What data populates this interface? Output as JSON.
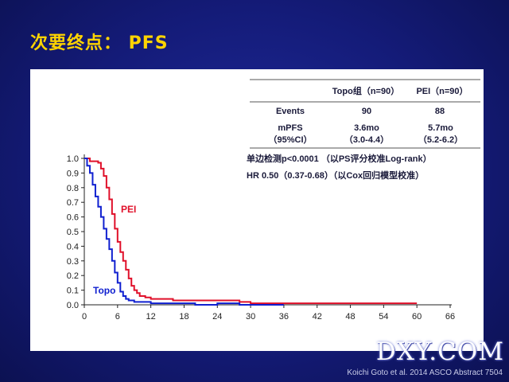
{
  "slide": {
    "title": "次要终点： PFS",
    "watermark": "DXY.COM",
    "citation": "Koichi Goto et al. 2014 ASCO Abstract 7504"
  },
  "table": {
    "headers": [
      "",
      "Topo组（n=90）",
      "PEI（n=90）"
    ],
    "events": {
      "label": "Events",
      "topo": "90",
      "pei": "88"
    },
    "mpfs": {
      "label_line1": "mPFS",
      "label_line2": "（95%CI）",
      "topo_line1": "3.6mo",
      "topo_line2": "（3.0-4.4）",
      "pei_line1": "5.7mo",
      "pei_line2": "（5.2-6.2）"
    },
    "note1": "单边检测p<0.0001 （以PS评分校准Log-rank）",
    "note2": "HR 0.50（0.37-0.68）（以Cox回归模型校准）"
  },
  "chart_data": {
    "type": "line",
    "xlabel": "",
    "ylabel": "",
    "xlim": [
      0,
      66
    ],
    "ylim": [
      0,
      1.0
    ],
    "x_ticks": [
      "0",
      "6",
      "12",
      "18",
      "24",
      "30",
      "36",
      "42",
      "48",
      "54",
      "60",
      "66"
    ],
    "y_ticks": [
      "0.0",
      "0.1",
      "0.2",
      "0.3",
      "0.4",
      "0.5",
      "0.6",
      "0.7",
      "0.8",
      "0.9",
      "1.0"
    ],
    "series": [
      {
        "name": "PEI",
        "color": "#e0102a",
        "points": [
          [
            0,
            1.0
          ],
          [
            1,
            0.98
          ],
          [
            2.5,
            0.97
          ],
          [
            3,
            0.93
          ],
          [
            3.5,
            0.88
          ],
          [
            4,
            0.8
          ],
          [
            4.5,
            0.72
          ],
          [
            5,
            0.62
          ],
          [
            5.5,
            0.52
          ],
          [
            6,
            0.43
          ],
          [
            6.5,
            0.36
          ],
          [
            7,
            0.3
          ],
          [
            7.5,
            0.24
          ],
          [
            8,
            0.18
          ],
          [
            8.5,
            0.13
          ],
          [
            9,
            0.1
          ],
          [
            9.5,
            0.08
          ],
          [
            10,
            0.06
          ],
          [
            11,
            0.05
          ],
          [
            12,
            0.04
          ],
          [
            14,
            0.04
          ],
          [
            16,
            0.03
          ],
          [
            20,
            0.03
          ],
          [
            25,
            0.03
          ],
          [
            28,
            0.02
          ],
          [
            30,
            0.01
          ],
          [
            36,
            0.01
          ],
          [
            40,
            0.01
          ],
          [
            50,
            0.01
          ],
          [
            60,
            0.01
          ]
        ]
      },
      {
        "name": "Topo",
        "color": "#1020d0",
        "points": [
          [
            0,
            1.0
          ],
          [
            0.5,
            0.95
          ],
          [
            1,
            0.9
          ],
          [
            1.5,
            0.82
          ],
          [
            2,
            0.74
          ],
          [
            2.5,
            0.67
          ],
          [
            3,
            0.6
          ],
          [
            3.5,
            0.52
          ],
          [
            4,
            0.45
          ],
          [
            4.5,
            0.38
          ],
          [
            5,
            0.3
          ],
          [
            5.5,
            0.22
          ],
          [
            6,
            0.15
          ],
          [
            6.5,
            0.09
          ],
          [
            7,
            0.06
          ],
          [
            7.5,
            0.04
          ],
          [
            8,
            0.03
          ],
          [
            9,
            0.02
          ],
          [
            10,
            0.02
          ],
          [
            12,
            0.01
          ],
          [
            16,
            0.01
          ],
          [
            18,
            0.01
          ],
          [
            20,
            0.0
          ],
          [
            24,
            0.01
          ],
          [
            28,
            0.0
          ],
          [
            36,
            0.0
          ]
        ]
      }
    ]
  }
}
